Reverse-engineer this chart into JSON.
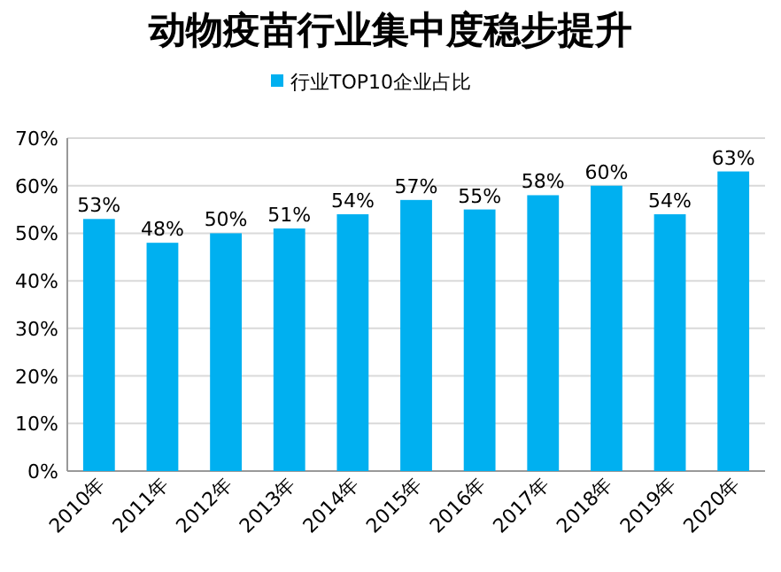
{
  "chart_data": {
    "type": "bar",
    "title": "动物疫苗行业集中度稳步提升",
    "categories": [
      "2010年",
      "2011年",
      "2012年",
      "2013年",
      "2014年",
      "2015年",
      "2016年",
      "2017年",
      "2018年",
      "2019年",
      "2020年"
    ],
    "series": [
      {
        "name": "行业TOP10企业占比",
        "color": "#00b0f0",
        "values": [
          53,
          48,
          50,
          51,
          54,
          57,
          55,
          58,
          60,
          54,
          63
        ],
        "value_labels": [
          "53%",
          "48%",
          "50%",
          "51%",
          "54%",
          "57%",
          "55%",
          "58%",
          "60%",
          "54%",
          "63%"
        ]
      }
    ],
    "ylim": [
      0,
      70
    ],
    "yticks": [
      {
        "value": 0,
        "label": "0%"
      },
      {
        "value": 10,
        "label": "10%"
      },
      {
        "value": 20,
        "label": "20%"
      },
      {
        "value": 30,
        "label": "30%"
      },
      {
        "value": 40,
        "label": "40%"
      },
      {
        "value": 50,
        "label": "50%"
      },
      {
        "value": 60,
        "label": "60%"
      },
      {
        "value": 70,
        "label": "70%"
      }
    ],
    "grid": "y",
    "legend": "top"
  }
}
